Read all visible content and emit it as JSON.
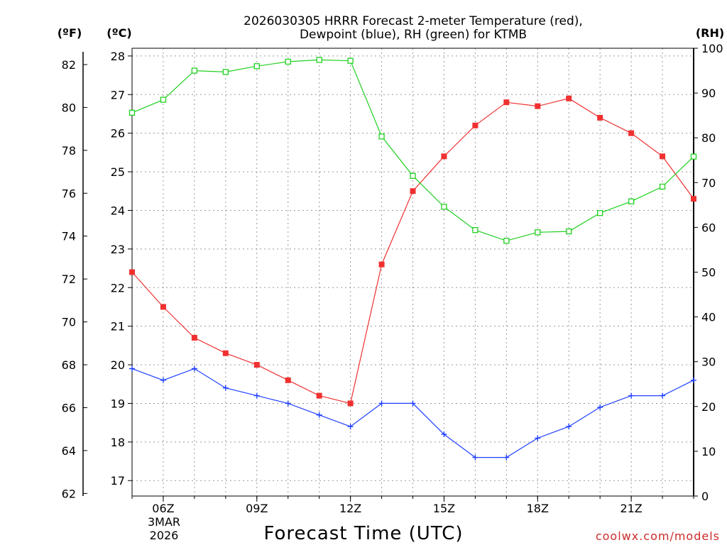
{
  "chart_data": {
    "type": "line",
    "title_lines": [
      "2026030305 HRRR Forecast 2-meter Temperature (red),",
      "Dewpoint (blue), RH (green) for KTMB"
    ],
    "unit_labels": {
      "fahrenheit": "(ºF)",
      "celsius": "(ºC)",
      "rh": "(RH)"
    },
    "xlabel": "Forecast Time (UTC)",
    "credit": "coolwx.com/models",
    "date_labels": [
      "3MAR",
      "2026"
    ],
    "x_hours": [
      5,
      6,
      7,
      8,
      9,
      10,
      11,
      12,
      13,
      14,
      15,
      16,
      17,
      18,
      19,
      20,
      21,
      22,
      23
    ],
    "x_range": [
      5,
      23
    ],
    "x_ticks": [
      {
        "hour": 6,
        "label": "06Z"
      },
      {
        "hour": 9,
        "label": "09Z"
      },
      {
        "hour": 12,
        "label": "12Z"
      },
      {
        "hour": 15,
        "label": "15Z"
      },
      {
        "hour": 18,
        "label": "18Z"
      },
      {
        "hour": 21,
        "label": "21Z"
      }
    ],
    "ylim_celsius": [
      16.6,
      28.2
    ],
    "ylim_fahrenheit": [
      61.88,
      82.76
    ],
    "ylim_rh": [
      0,
      100
    ],
    "celsius_ticks": [
      "17",
      "18",
      "19",
      "20",
      "21",
      "22",
      "23",
      "24",
      "25",
      "26",
      "27",
      "28"
    ],
    "fahrenheit_ticks": [
      "62",
      "64",
      "66",
      "68",
      "70",
      "72",
      "74",
      "76",
      "78",
      "80",
      "82"
    ],
    "rh_ticks": [
      "0",
      "10",
      "20",
      "30",
      "40",
      "50",
      "60",
      "70",
      "80",
      "90",
      "100"
    ],
    "series": [
      {
        "name": "Temperature (red)",
        "axis": "celsius",
        "color": "#f03030",
        "marker": "filled-square",
        "values": [
          22.4,
          21.5,
          20.7,
          20.3,
          20.0,
          19.6,
          19.2,
          19.0,
          22.6,
          24.5,
          25.4,
          26.2,
          26.8,
          26.7,
          26.9,
          26.4,
          26.0,
          25.4,
          24.3
        ]
      },
      {
        "name": "Dewpoint (blue)",
        "axis": "celsius",
        "color": "#2040ff",
        "marker": "plus",
        "values": [
          19.9,
          19.6,
          19.9,
          19.4,
          19.2,
          19.0,
          18.7,
          18.4,
          19.0,
          19.0,
          18.2,
          17.6,
          17.6,
          18.1,
          18.4,
          18.9,
          19.2,
          19.2,
          19.6
        ]
      },
      {
        "name": "RH (green)",
        "axis": "rh",
        "color": "#20d020",
        "marker": "open-square",
        "values": [
          85.6,
          88.5,
          95.0,
          94.7,
          96.0,
          97.0,
          97.4,
          97.2,
          80.3,
          71.5,
          64.6,
          59.4,
          57.0,
          58.9,
          59.1,
          63.2,
          65.8,
          69.1,
          75.8
        ]
      }
    ]
  }
}
